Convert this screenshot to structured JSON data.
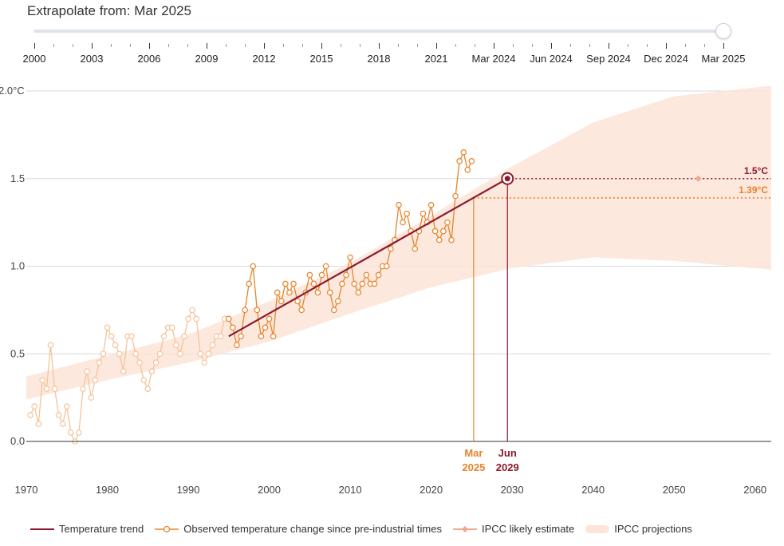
{
  "slider": {
    "label": "Extrapolate from:",
    "value": "Mar 2025",
    "ticks": [
      "2000",
      "2003",
      "2006",
      "2009",
      "2012",
      "2015",
      "2018",
      "2021",
      "Mar 2024",
      "Jun 2024",
      "Sep 2024",
      "Dec 2024",
      "Mar 2025"
    ]
  },
  "legend": {
    "trend": "Temperature trend",
    "observed": "Observed temperature change since pre-industrial times",
    "ipcc_estimate": "IPCC likely estimate",
    "ipcc_projections": "IPCC projections"
  },
  "colors": {
    "trend": "#8b1a2e",
    "observed": "#e8832a",
    "observed_faded": "#f3c49a",
    "ipcc_band": "#fde4d8",
    "ipcc_estimate": "#f0a98a",
    "axis": "#333333",
    "grid": "#d9d9d9"
  },
  "chart_data": {
    "type": "line",
    "x_range": [
      1970,
      2062
    ],
    "y_range": [
      -0.25,
      2.0
    ],
    "x_ticks": [
      1970,
      1980,
      1990,
      2000,
      2010,
      2020,
      2030,
      2040,
      2050,
      2060
    ],
    "y_ticks": [
      {
        "value": 0.0,
        "label": "0.0"
      },
      {
        "value": 0.5,
        "label": "0.5"
      },
      {
        "value": 1.0,
        "label": "1.0"
      },
      {
        "value": 1.5,
        "label": "1.5"
      },
      {
        "value": 2.0,
        "label": "2.0°C"
      }
    ],
    "trend": {
      "x": [
        1995.0,
        2029.42
      ],
      "y": [
        0.6,
        1.5
      ]
    },
    "ipcc_band": {
      "x": [
        1970,
        1980,
        1990,
        2000,
        2010,
        2020,
        2030,
        2040,
        2050,
        2062
      ],
      "lower": [
        0.24,
        0.35,
        0.45,
        0.57,
        0.73,
        0.88,
        0.99,
        1.05,
        1.03,
        0.98
      ],
      "upper": [
        0.37,
        0.49,
        0.61,
        0.8,
        1.02,
        1.29,
        1.57,
        1.82,
        1.97,
        2.03
      ]
    },
    "ipcc_estimate_point": {
      "x": 2053,
      "y": 1.5
    },
    "observed": {
      "x": [
        1970.5,
        1971.0,
        1971.5,
        1972.0,
        1972.5,
        1973.0,
        1973.5,
        1974.0,
        1974.5,
        1975.0,
        1975.5,
        1976.0,
        1976.5,
        1977.0,
        1977.5,
        1978.0,
        1978.5,
        1979.0,
        1979.5,
        1980.0,
        1980.5,
        1981.0,
        1981.5,
        1982.0,
        1982.5,
        1983.0,
        1983.5,
        1984.0,
        1984.5,
        1985.0,
        1985.5,
        1986.0,
        1986.5,
        1987.0,
        1987.5,
        1988.0,
        1988.5,
        1989.0,
        1989.5,
        1990.0,
        1990.5,
        1991.0,
        1991.5,
        1992.0,
        1992.5,
        1993.0,
        1993.5,
        1994.0,
        1994.5,
        1995.0,
        1995.5,
        1996.0,
        1996.5,
        1997.0,
        1997.5,
        1998.0,
        1998.5,
        1999.0,
        1999.5,
        2000.0,
        2000.5,
        2001.0,
        2001.5,
        2002.0,
        2002.5,
        2003.0,
        2003.5,
        2004.0,
        2004.5,
        2005.0,
        2005.5,
        2006.0,
        2006.5,
        2007.0,
        2007.5,
        2008.0,
        2008.5,
        2009.0,
        2009.5,
        2010.0,
        2010.5,
        2011.0,
        2011.5,
        2012.0,
        2012.5,
        2013.0,
        2013.5,
        2014.0,
        2014.5,
        2015.0,
        2015.5,
        2016.0,
        2016.5,
        2017.0,
        2017.5,
        2018.0,
        2018.5,
        2019.0,
        2019.5,
        2020.0,
        2020.5,
        2021.0,
        2021.5,
        2022.0,
        2022.5,
        2023.0,
        2023.5,
        2024.0,
        2024.5,
        2025.0
      ],
      "y": [
        0.15,
        0.2,
        0.1,
        0.35,
        0.3,
        0.55,
        0.3,
        0.15,
        0.1,
        0.2,
        0.05,
        0.0,
        0.05,
        0.3,
        0.4,
        0.25,
        0.35,
        0.45,
        0.5,
        0.65,
        0.6,
        0.55,
        0.5,
        0.4,
        0.6,
        0.6,
        0.5,
        0.45,
        0.35,
        0.3,
        0.4,
        0.45,
        0.5,
        0.6,
        0.65,
        0.65,
        0.55,
        0.5,
        0.6,
        0.7,
        0.75,
        0.7,
        0.5,
        0.45,
        0.5,
        0.55,
        0.6,
        0.6,
        0.7,
        0.7,
        0.65,
        0.55,
        0.6,
        0.75,
        0.9,
        1.0,
        0.75,
        0.6,
        0.65,
        0.7,
        0.6,
        0.85,
        0.8,
        0.9,
        0.85,
        0.9,
        0.8,
        0.75,
        0.85,
        0.95,
        0.9,
        0.85,
        0.95,
        1.0,
        0.85,
        0.75,
        0.8,
        0.9,
        0.95,
        1.05,
        0.9,
        0.85,
        0.9,
        0.95,
        0.9,
        0.9,
        0.95,
        1.0,
        1.0,
        1.1,
        1.15,
        1.35,
        1.25,
        1.3,
        1.2,
        1.1,
        1.2,
        1.3,
        1.25,
        1.35,
        1.2,
        1.15,
        1.2,
        1.25,
        1.15,
        1.4,
        1.6,
        1.65,
        1.55,
        1.6
      ]
    },
    "annotations": [
      {
        "x": 2025.25,
        "y": 1.39,
        "label": "1.39°C",
        "line1": "Mar",
        "line2": "2025",
        "color": "#e8832a"
      },
      {
        "x": 2029.42,
        "y": 1.5,
        "label": "1.5°C",
        "line1": "Jun",
        "line2": "2029",
        "color": "#8b1a2e"
      }
    ]
  }
}
